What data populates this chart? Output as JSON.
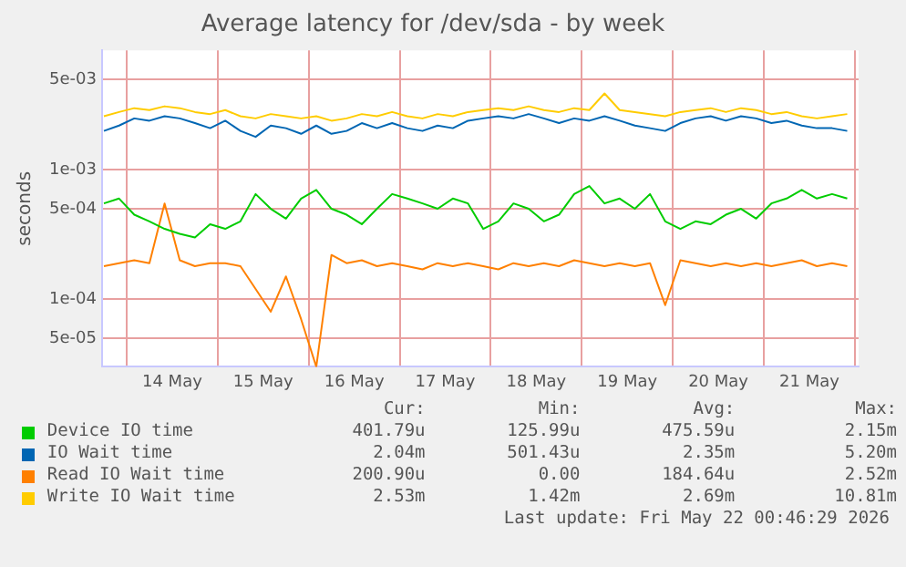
{
  "chart_data": {
    "type": "line",
    "title": "Average latency for /dev/sda - by week",
    "ylabel": "seconds",
    "log": "y",
    "grid": true,
    "legend": "bottom",
    "marker": "none",
    "line_style": "solid",
    "xlim": [
      "2026-05-13T17:30",
      "2026-05-22T01:00"
    ],
    "xticks": [
      {
        "value": "2026-05-14T00:00",
        "label": null
      },
      {
        "value": "2026-05-14T12:00",
        "label": "14 May"
      },
      {
        "value": "2026-05-15T00:00",
        "label": null
      },
      {
        "value": "2026-05-15T12:00",
        "label": "15 May"
      },
      {
        "value": "2026-05-16T00:00",
        "label": null
      },
      {
        "value": "2026-05-16T12:00",
        "label": "16 May"
      },
      {
        "value": "2026-05-17T00:00",
        "label": null
      },
      {
        "value": "2026-05-17T12:00",
        "label": "17 May"
      },
      {
        "value": "2026-05-18T00:00",
        "label": null
      },
      {
        "value": "2026-05-18T12:00",
        "label": "18 May"
      },
      {
        "value": "2026-05-19T00:00",
        "label": null
      },
      {
        "value": "2026-05-19T12:00",
        "label": "19 May"
      },
      {
        "value": "2026-05-20T00:00",
        "label": null
      },
      {
        "value": "2026-05-20T12:00",
        "label": "20 May"
      },
      {
        "value": "2026-05-21T00:00",
        "label": null
      },
      {
        "value": "2026-05-21T12:00",
        "label": "21 May"
      },
      {
        "value": "2026-05-22T00:00",
        "label": null
      }
    ],
    "ylim": [
      3e-05,
      0.0084
    ],
    "yticks": [
      {
        "value": 5e-05,
        "label": "5e-05"
      },
      {
        "value": 0.0001,
        "label": "1e-04"
      },
      {
        "value": 0.0005,
        "label": "5e-04"
      },
      {
        "value": 0.001,
        "label": "1e-03"
      },
      {
        "value": 0.005,
        "label": "5e-03"
      }
    ],
    "x": [
      "2026-05-13T18:00",
      "2026-05-13T22:00",
      "2026-05-14T02:00",
      "2026-05-14T06:00",
      "2026-05-14T10:00",
      "2026-05-14T14:00",
      "2026-05-14T18:00",
      "2026-05-14T22:00",
      "2026-05-15T02:00",
      "2026-05-15T06:00",
      "2026-05-15T10:00",
      "2026-05-15T14:00",
      "2026-05-15T18:00",
      "2026-05-15T22:00",
      "2026-05-16T02:00",
      "2026-05-16T06:00",
      "2026-05-16T10:00",
      "2026-05-16T14:00",
      "2026-05-16T18:00",
      "2026-05-16T22:00",
      "2026-05-17T02:00",
      "2026-05-17T06:00",
      "2026-05-17T10:00",
      "2026-05-17T14:00",
      "2026-05-17T18:00",
      "2026-05-17T22:00",
      "2026-05-18T02:00",
      "2026-05-18T06:00",
      "2026-05-18T10:00",
      "2026-05-18T14:00",
      "2026-05-18T18:00",
      "2026-05-18T22:00",
      "2026-05-19T02:00",
      "2026-05-19T06:00",
      "2026-05-19T10:00",
      "2026-05-19T14:00",
      "2026-05-19T18:00",
      "2026-05-19T22:00",
      "2026-05-20T02:00",
      "2026-05-20T06:00",
      "2026-05-20T10:00",
      "2026-05-20T14:00",
      "2026-05-20T18:00",
      "2026-05-20T22:00",
      "2026-05-21T02:00",
      "2026-05-21T06:00",
      "2026-05-21T10:00",
      "2026-05-21T14:00",
      "2026-05-21T18:00",
      "2026-05-21T22:00"
    ],
    "series": [
      {
        "name": "Device IO time",
        "color": "#00cc00",
        "values": [
          0.00055,
          0.0006,
          0.00045,
          0.0004,
          0.00035,
          0.00032,
          0.0003,
          0.00038,
          0.00035,
          0.0004,
          0.00065,
          0.0005,
          0.00042,
          0.0006,
          0.0007,
          0.0005,
          0.00045,
          0.00038,
          0.0005,
          0.00065,
          0.0006,
          0.00055,
          0.0005,
          0.0006,
          0.00055,
          0.00035,
          0.0004,
          0.00055,
          0.0005,
          0.0004,
          0.00045,
          0.00065,
          0.00075,
          0.00055,
          0.0006,
          0.0005,
          0.00065,
          0.0004,
          0.00035,
          0.0004,
          0.00038,
          0.00045,
          0.0005,
          0.00042,
          0.00055,
          0.0006,
          0.0007,
          0.0006,
          0.00065,
          0.0006
        ]
      },
      {
        "name": "IO Wait time",
        "color": "#0066b3",
        "values": [
          0.002,
          0.0022,
          0.0025,
          0.0024,
          0.0026,
          0.0025,
          0.0023,
          0.0021,
          0.0024,
          0.002,
          0.0018,
          0.0022,
          0.0021,
          0.0019,
          0.0022,
          0.0019,
          0.002,
          0.0023,
          0.0021,
          0.0023,
          0.0021,
          0.002,
          0.0022,
          0.0021,
          0.0024,
          0.0025,
          0.0026,
          0.0025,
          0.0027,
          0.0025,
          0.0023,
          0.0025,
          0.0024,
          0.0026,
          0.0024,
          0.0022,
          0.0021,
          0.002,
          0.0023,
          0.0025,
          0.0026,
          0.0024,
          0.0026,
          0.0025,
          0.0023,
          0.0024,
          0.0022,
          0.0021,
          0.0021,
          0.002
        ]
      },
      {
        "name": "Read IO Wait time",
        "color": "#ff8000",
        "values": [
          0.00018,
          0.00019,
          0.0002,
          0.00019,
          0.00055,
          0.0002,
          0.00018,
          0.00019,
          0.00019,
          0.00018,
          0.00012,
          8e-05,
          0.00015,
          7e-05,
          3e-05,
          0.00022,
          0.00019,
          0.0002,
          0.00018,
          0.00019,
          0.00018,
          0.00017,
          0.00019,
          0.00018,
          0.00019,
          0.00018,
          0.00017,
          0.00019,
          0.00018,
          0.00019,
          0.00018,
          0.0002,
          0.00019,
          0.00018,
          0.00019,
          0.00018,
          0.00019,
          9e-05,
          0.0002,
          0.00019,
          0.00018,
          0.00019,
          0.00018,
          0.00019,
          0.00018,
          0.00019,
          0.0002,
          0.00018,
          0.00019,
          0.00018
        ]
      },
      {
        "name": "Write IO Wait time",
        "color": "#ffcc00",
        "values": [
          0.0026,
          0.0028,
          0.003,
          0.0029,
          0.0031,
          0.003,
          0.0028,
          0.0027,
          0.0029,
          0.0026,
          0.0025,
          0.0027,
          0.0026,
          0.0025,
          0.0026,
          0.0024,
          0.0025,
          0.0027,
          0.0026,
          0.0028,
          0.0026,
          0.0025,
          0.0027,
          0.0026,
          0.0028,
          0.0029,
          0.003,
          0.0029,
          0.0031,
          0.0029,
          0.0028,
          0.003,
          0.0029,
          0.0039,
          0.0029,
          0.0028,
          0.0027,
          0.0026,
          0.0028,
          0.0029,
          0.003,
          0.0028,
          0.003,
          0.0029,
          0.0027,
          0.0028,
          0.0026,
          0.0025,
          0.0026,
          0.0027
        ]
      }
    ],
    "annotations": [
      "Cur:",
      "Min:",
      "Avg:",
      "Max:",
      "401.79u",
      "125.99u",
      "475.59u",
      "2.15m",
      "2.04m",
      "501.43u",
      "2.35m",
      "5.20m",
      "200.90u",
      "0.00",
      "184.64u",
      "2.52m",
      "2.53m",
      "1.42m",
      "2.69m",
      "10.81m",
      "Last update: Fri May 22 00:46:29 2026"
    ]
  }
}
